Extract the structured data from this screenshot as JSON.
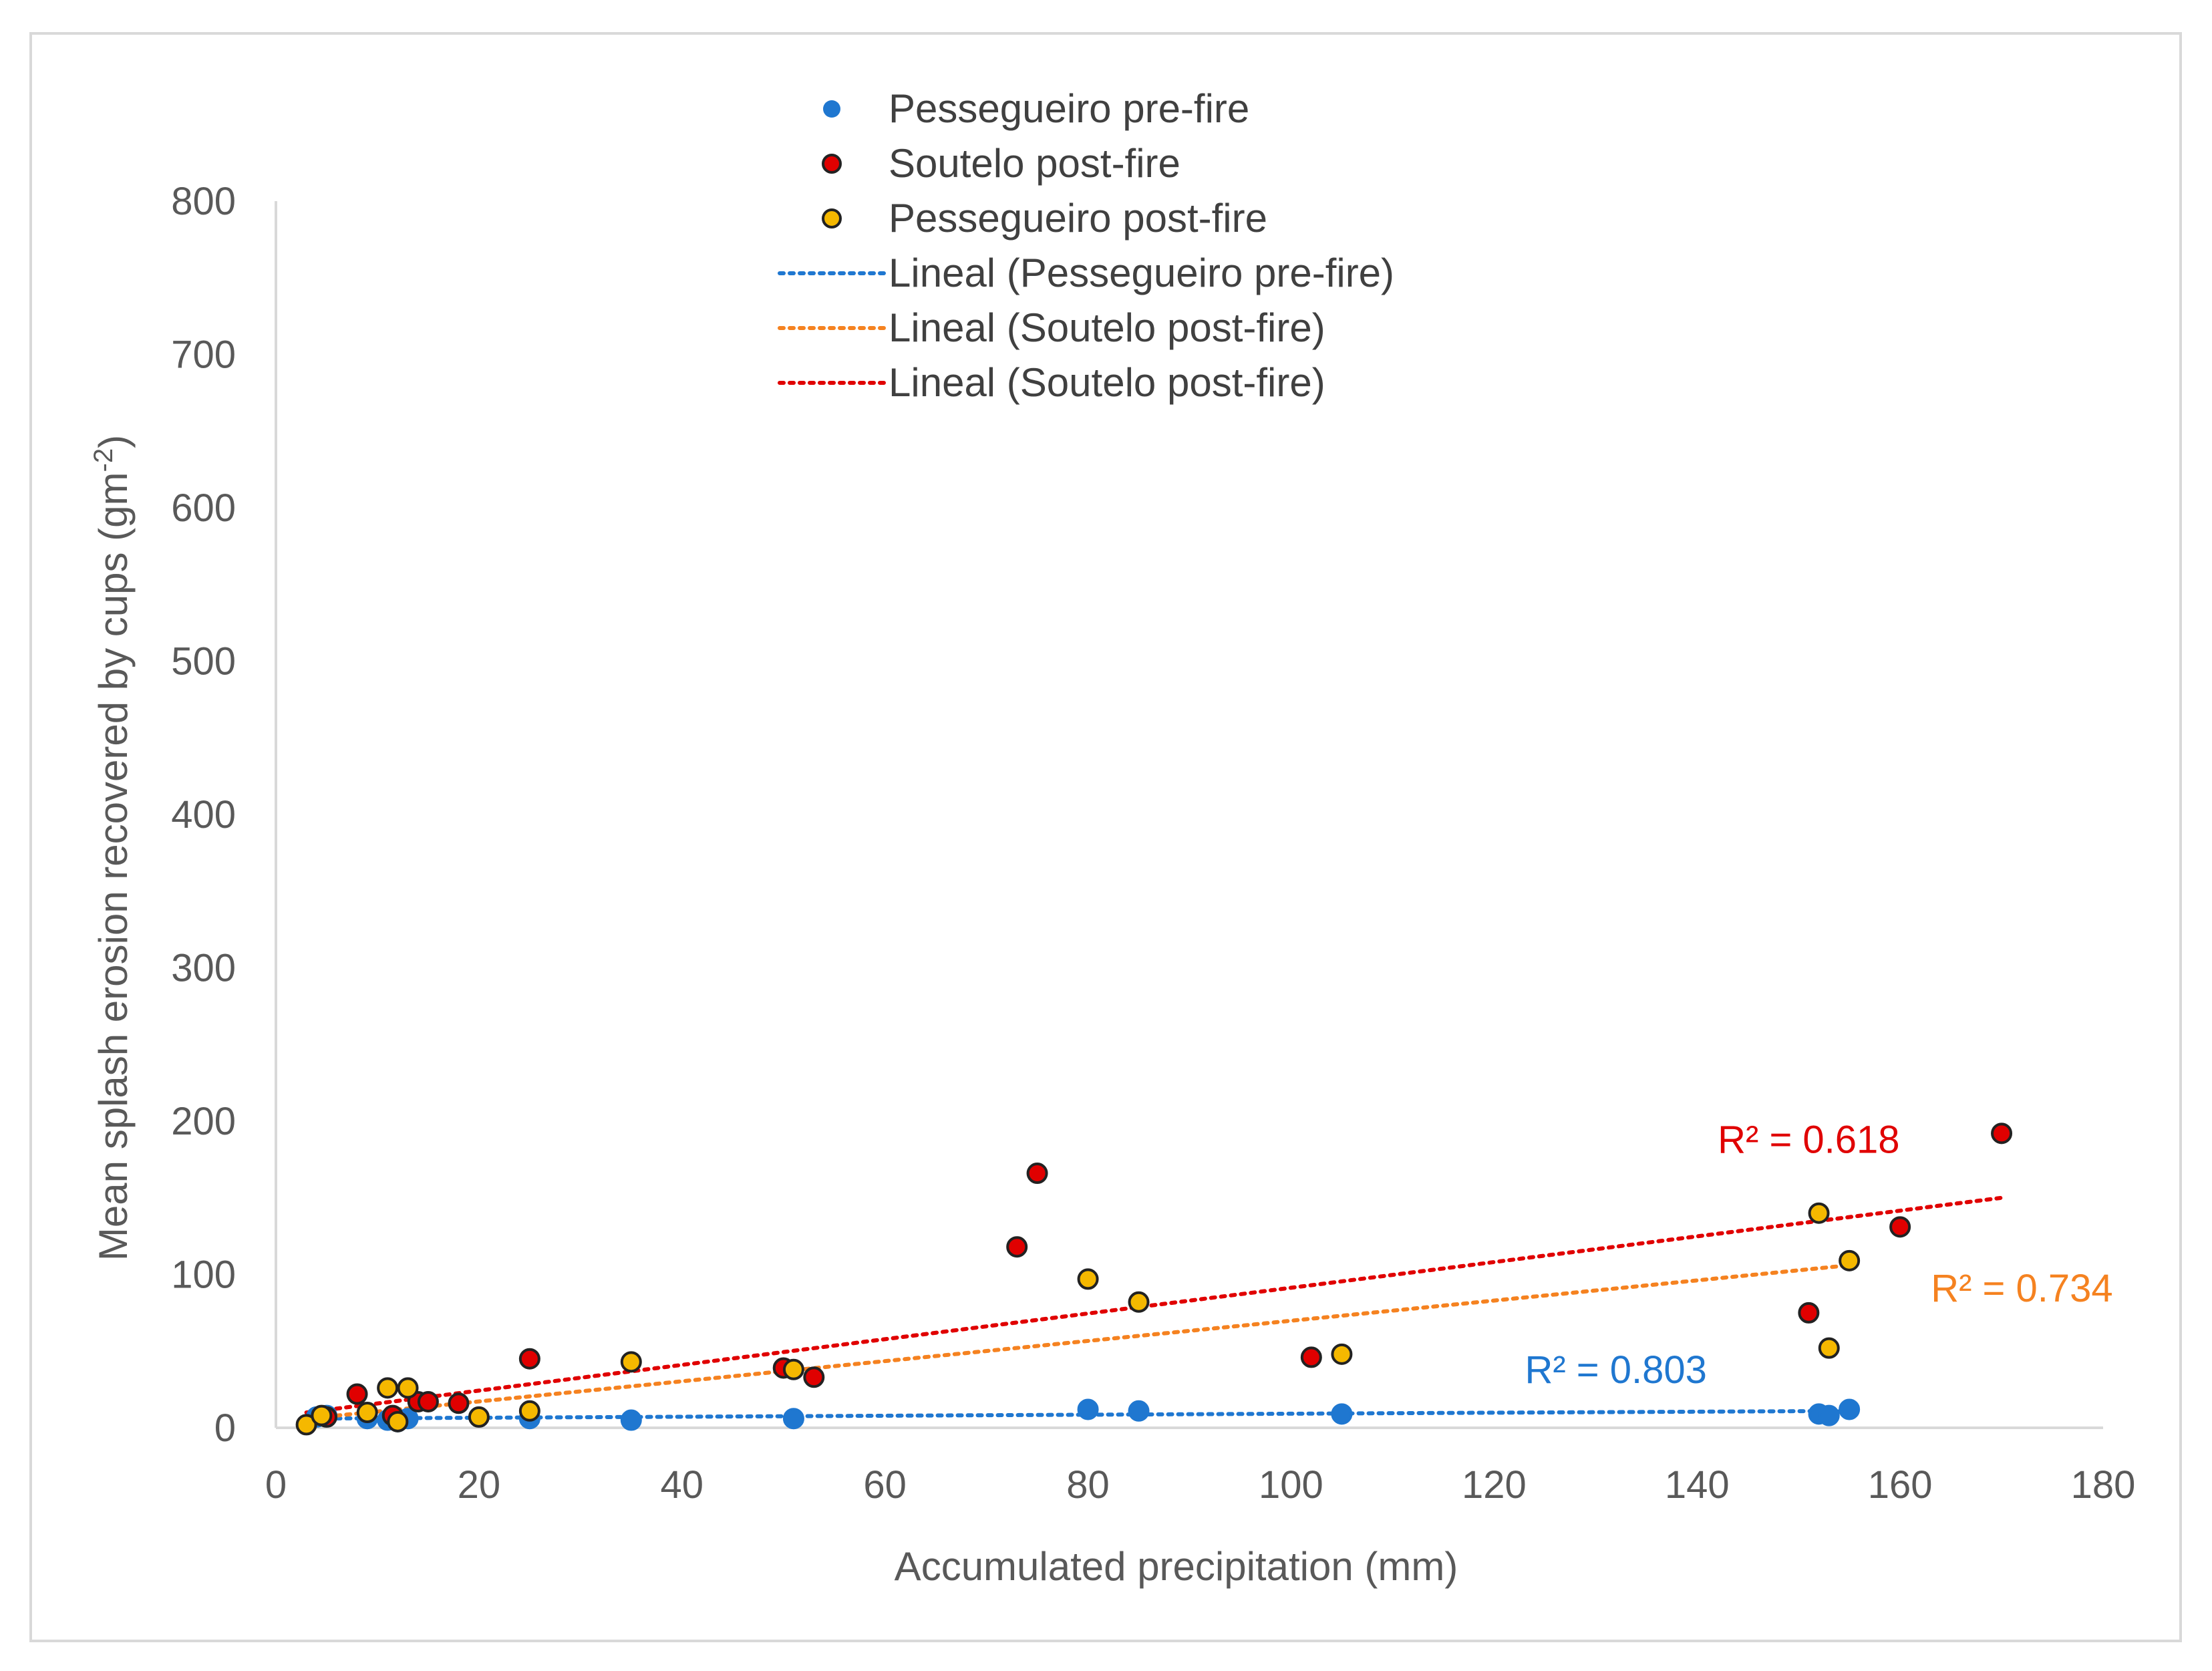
{
  "chart_data": {
    "type": "scatter",
    "title": "",
    "xlabel": "Accumulated precipitation (mm)",
    "ylabel": "Mean splash erosion recovered by cups (gm",
    "ylabel_sup": "-2",
    "ylabel_close": ")",
    "xlim": [
      0,
      180
    ],
    "ylim": [
      0,
      800
    ],
    "xticks": [
      0,
      20,
      40,
      60,
      80,
      100,
      120,
      140,
      160,
      180
    ],
    "yticks": [
      0,
      100,
      200,
      300,
      400,
      500,
      600,
      700,
      800
    ],
    "grid": false,
    "legend_position": "top-center",
    "series": [
      {
        "name": "Pessegueiro pre-fire",
        "kind": "points",
        "color": "#1f77d0",
        "edge": "#1f77d0",
        "x": [
          4,
          5,
          9,
          11,
          12,
          13,
          25,
          35,
          51,
          80,
          85,
          105,
          152,
          153,
          155
        ],
        "y": [
          7,
          8,
          6,
          5,
          4,
          6,
          6,
          5,
          6,
          12,
          11,
          9,
          9,
          8,
          12
        ]
      },
      {
        "name": "Soutelo post-fire",
        "kind": "points",
        "color": "#e00000",
        "edge": "#222222",
        "x": [
          5,
          8,
          11.5,
          14,
          15,
          18,
          25,
          50,
          53,
          73,
          75,
          102,
          151,
          160,
          170
        ],
        "y": [
          7,
          22,
          8,
          17,
          17,
          16,
          45,
          39,
          33,
          118,
          166,
          46,
          75,
          131,
          192
        ]
      },
      {
        "name": "Pessegueiro post-fire",
        "kind": "points",
        "color": "#f5b800",
        "edge": "#222222",
        "x": [
          3,
          4.5,
          9,
          11,
          12,
          13,
          20,
          25,
          35,
          51,
          80,
          85,
          105,
          152,
          153,
          155
        ],
        "y": [
          2,
          8,
          10,
          26,
          4,
          26,
          7,
          11,
          43,
          38,
          97,
          82,
          48,
          140,
          52,
          109
        ]
      },
      {
        "name": "Lineal (Pessegueiro pre-fire)",
        "kind": "trendline",
        "color": "#1f77d0",
        "x": [
          3,
          155
        ],
        "y": [
          6,
          11
        ]
      },
      {
        "name": "Lineal (Soutelo post-fire)",
        "kind": "trendline",
        "color": "#f58220",
        "x": [
          3,
          155
        ],
        "y": [
          6,
          106
        ]
      },
      {
        "name": "Lineal (Soutelo post-fire)",
        "kind": "trendline",
        "color": "#e00000",
        "x": [
          3,
          170
        ],
        "y": [
          10,
          150
        ]
      }
    ],
    "annotations": [
      {
        "text": "R² = 0.618",
        "color": "#e00000",
        "x": 151,
        "y": 188
      },
      {
        "text": "R² = 0.734",
        "color": "#f58220",
        "x": 172,
        "y": 91
      },
      {
        "text": "R² = 0.803",
        "color": "#1f77d0",
        "x": 132,
        "y": 38
      }
    ]
  }
}
